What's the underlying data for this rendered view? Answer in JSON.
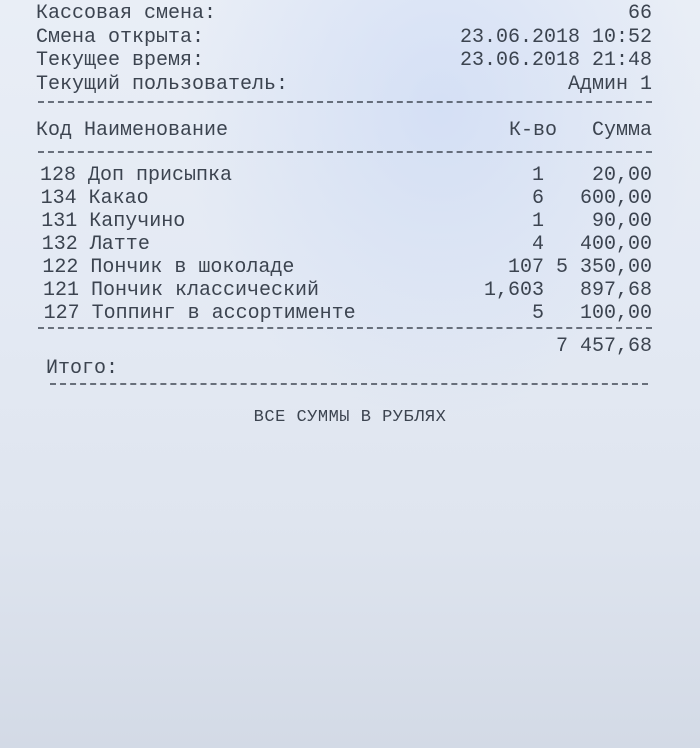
{
  "header": {
    "shift_label": "Кассовая смена:",
    "shift_value": "66",
    "opened_label": "Смена открыта:",
    "opened_value": "23.06.2018 10:52",
    "current_time_label": "Текущее время:",
    "current_time_value": "23.06.2018 21:48",
    "user_label": "Текущий пользователь:",
    "user_value": "Админ 1"
  },
  "columns": {
    "code_name": "Код Наименование",
    "qty": "К-во",
    "sum": "Сумма"
  },
  "items": [
    {
      "code_name": "128 Доп присыпка",
      "qty": "1",
      "sum": "20,00"
    },
    {
      "code_name": "134 Какао",
      "qty": "6",
      "sum": "600,00"
    },
    {
      "code_name": "131 Капучино",
      "qty": "1",
      "sum": "90,00"
    },
    {
      "code_name": "132 Латте",
      "qty": "4",
      "sum": "400,00"
    },
    {
      "code_name": "122 Пончик в шоколаде",
      "qty": "107",
      "sum": "5 350,00"
    },
    {
      "code_name": "121 Пончик классический",
      "qty": "1,603",
      "sum": "897,68"
    },
    {
      "code_name": "127 Топпинг в ассортименте",
      "qty": "5",
      "sum": "100,00"
    }
  ],
  "total": {
    "label": "Итого:",
    "value": "7 457,68"
  },
  "footer": "ВСЕ СУММЫ В РУБЛЯХ"
}
